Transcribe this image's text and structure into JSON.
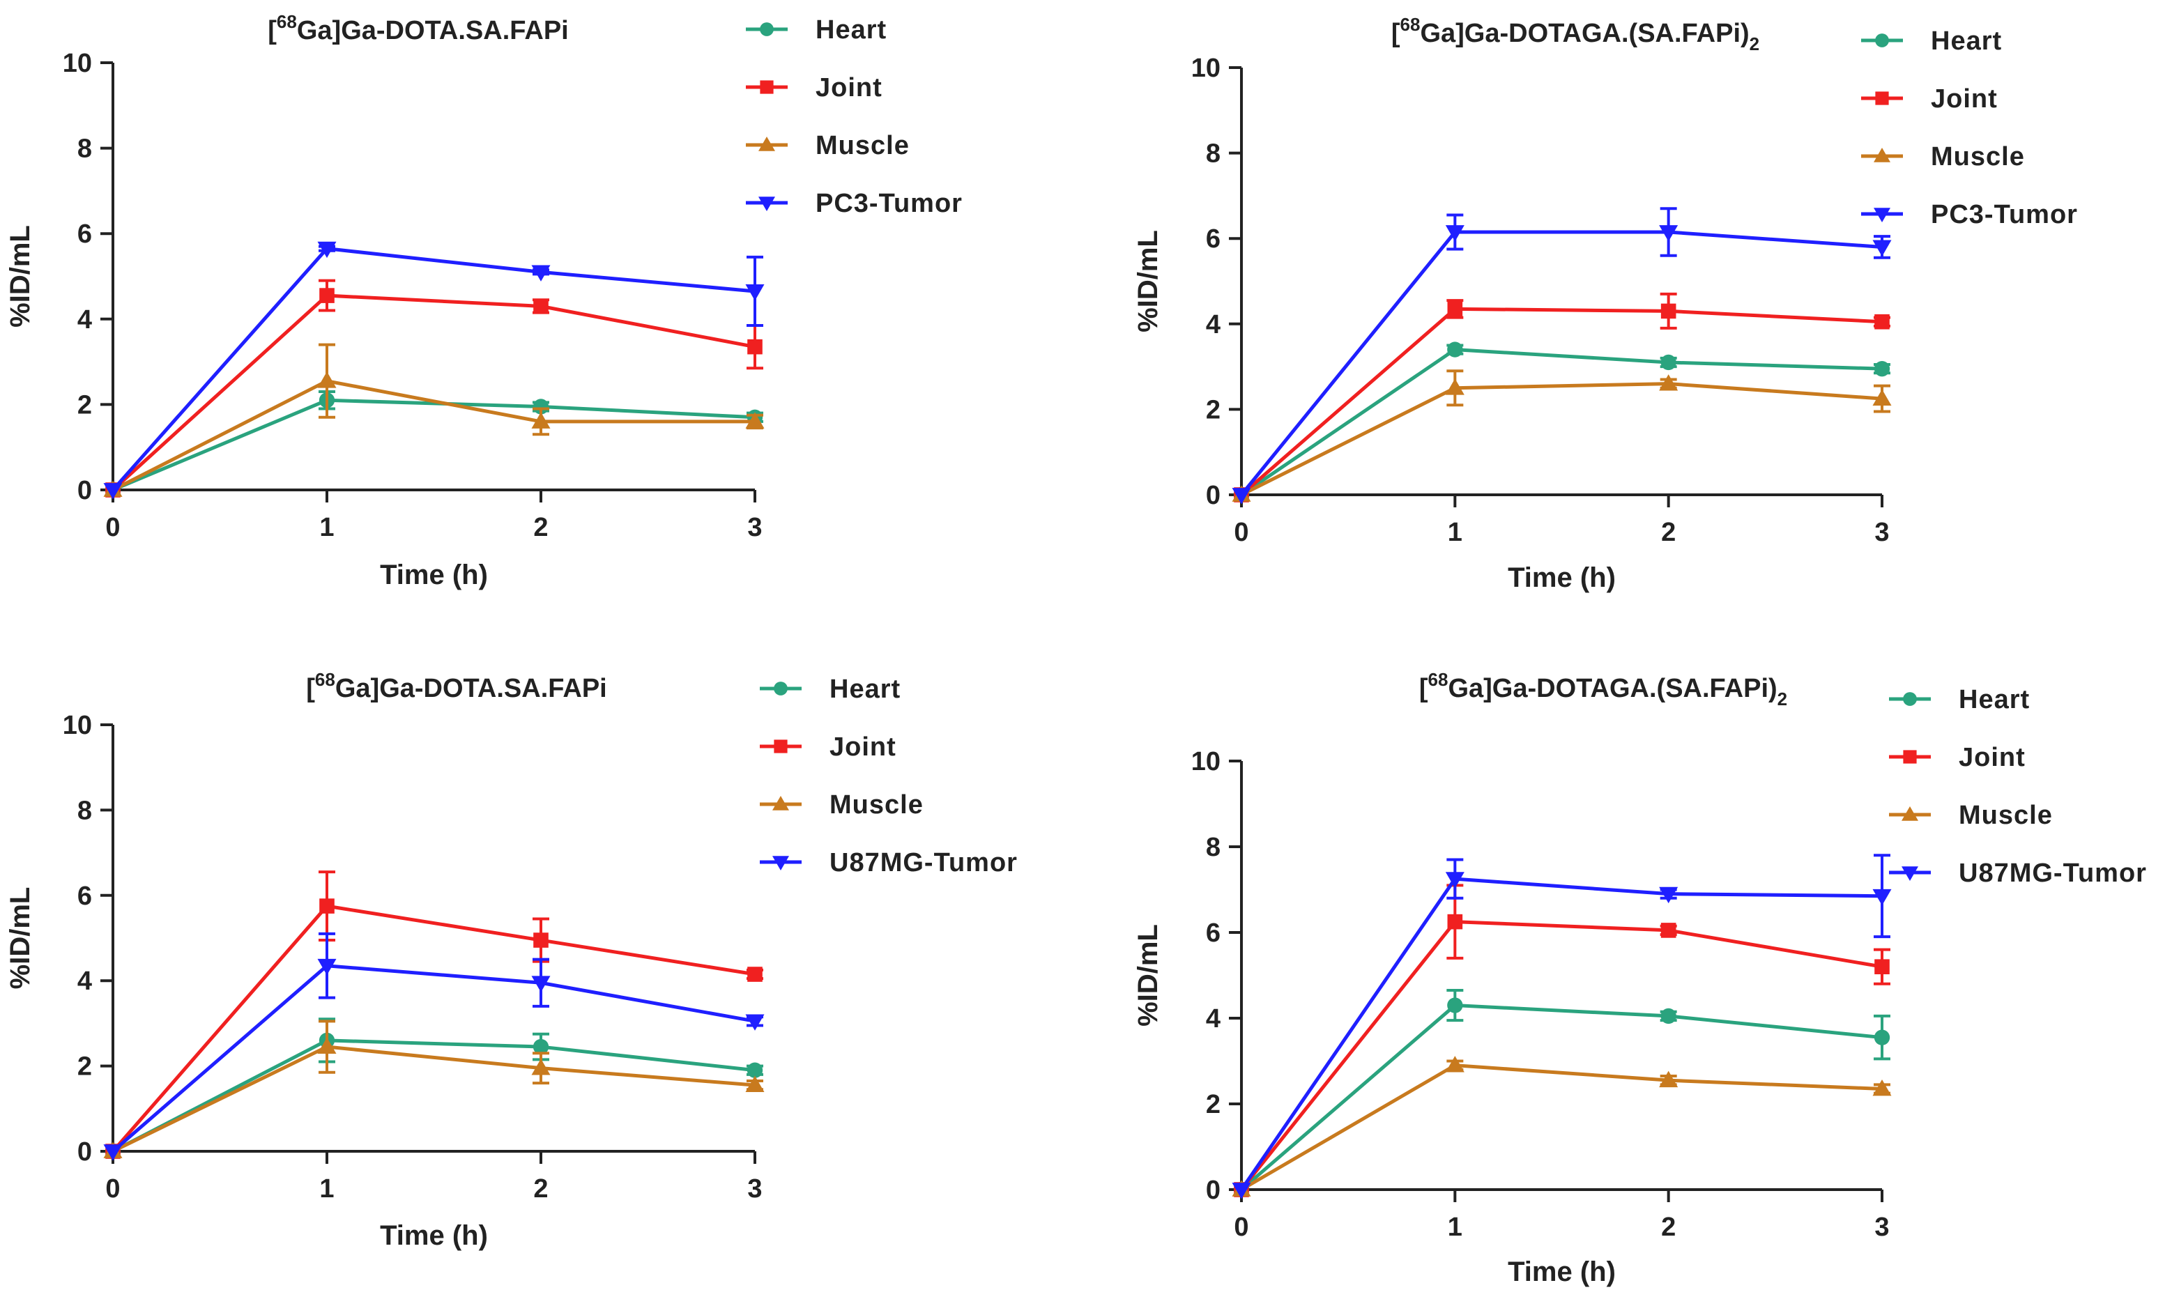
{
  "chart_data": [
    {
      "type": "line",
      "title": {
        "prefix": "[",
        "superscript": "68",
        "main": "Ga]Ga-DOTA.SA.FAPi",
        "subscript": ""
      },
      "xlabel": "Time (h)",
      "ylabel": "%ID/mL",
      "xlim": [
        0,
        3
      ],
      "ylim": [
        0,
        10
      ],
      "xticks": [
        0,
        1,
        2,
        3
      ],
      "yticks": [
        0,
        2,
        4,
        6,
        8,
        10
      ],
      "grid": false,
      "legend_position": "right",
      "x": [
        0,
        1,
        2,
        3
      ],
      "series": [
        {
          "name": "Heart",
          "color": "#2aa37e",
          "marker": "circle",
          "values": [
            0,
            2.1,
            1.95,
            1.7
          ],
          "errors": [
            0,
            0.2,
            0.1,
            0.1
          ]
        },
        {
          "name": "Joint",
          "color": "#f02020",
          "marker": "square",
          "values": [
            0,
            4.55,
            4.3,
            3.35
          ],
          "errors": [
            0,
            0.35,
            0.15,
            0.5
          ]
        },
        {
          "name": "Muscle",
          "color": "#c87a1e",
          "marker": "triangle-up",
          "values": [
            0,
            2.55,
            1.6,
            1.6
          ],
          "errors": [
            0,
            0.85,
            0.3,
            0.15
          ]
        },
        {
          "name": "PC3-Tumor",
          "color": "#1f1fff",
          "marker": "triangle-down",
          "values": [
            0,
            5.65,
            5.1,
            4.65
          ],
          "errors": [
            0,
            0.05,
            0.05,
            0.8
          ]
        }
      ]
    },
    {
      "type": "line",
      "title": {
        "prefix": "[",
        "superscript": "68",
        "main": "Ga]Ga-DOTAGA.(SA.FAPi)",
        "subscript": "2"
      },
      "xlabel": "Time (h)",
      "ylabel": "%ID/mL",
      "xlim": [
        0,
        3
      ],
      "ylim": [
        0,
        10
      ],
      "xticks": [
        0,
        1,
        2,
        3
      ],
      "yticks": [
        0,
        2,
        4,
        6,
        8,
        10
      ],
      "grid": false,
      "legend_position": "right",
      "x": [
        0,
        1,
        2,
        3
      ],
      "series": [
        {
          "name": "Heart",
          "color": "#2aa37e",
          "marker": "circle",
          "values": [
            0,
            3.4,
            3.1,
            2.95
          ],
          "errors": [
            0,
            0.1,
            0.1,
            0.1
          ]
        },
        {
          "name": "Joint",
          "color": "#f02020",
          "marker": "square",
          "values": [
            0,
            4.35,
            4.3,
            4.05
          ],
          "errors": [
            0,
            0.2,
            0.4,
            0.1
          ]
        },
        {
          "name": "Muscle",
          "color": "#c87a1e",
          "marker": "triangle-up",
          "values": [
            0,
            2.5,
            2.6,
            2.25
          ],
          "errors": [
            0,
            0.4,
            0.1,
            0.3
          ]
        },
        {
          "name": "PC3-Tumor",
          "color": "#1f1fff",
          "marker": "triangle-down",
          "values": [
            0,
            6.15,
            6.15,
            5.8
          ],
          "errors": [
            0,
            0.4,
            0.55,
            0.25
          ]
        }
      ]
    },
    {
      "type": "line",
      "title": {
        "prefix": "[",
        "superscript": "68",
        "main": "Ga]Ga-DOTA.SA.FAPi",
        "subscript": ""
      },
      "xlabel": "Time (h)",
      "ylabel": "%ID/mL",
      "xlim": [
        0,
        3
      ],
      "ylim": [
        0,
        10
      ],
      "xticks": [
        0,
        1,
        2,
        3
      ],
      "yticks": [
        0,
        2,
        4,
        6,
        8,
        10
      ],
      "grid": false,
      "legend_position": "right",
      "x": [
        0,
        1,
        2,
        3
      ],
      "series": [
        {
          "name": "Heart",
          "color": "#2aa37e",
          "marker": "circle",
          "values": [
            0,
            2.6,
            2.45,
            1.9
          ],
          "errors": [
            0,
            0.5,
            0.3,
            0.1
          ]
        },
        {
          "name": "Joint",
          "color": "#f02020",
          "marker": "square",
          "values": [
            0,
            5.75,
            4.95,
            4.15
          ],
          "errors": [
            0,
            0.8,
            0.5,
            0.1
          ]
        },
        {
          "name": "Muscle",
          "color": "#c87a1e",
          "marker": "triangle-up",
          "values": [
            0,
            2.45,
            1.95,
            1.55
          ],
          "errors": [
            0,
            0.6,
            0.35,
            0.1
          ]
        },
        {
          "name": "U87MG-Tumor",
          "color": "#1f1fff",
          "marker": "triangle-down",
          "values": [
            0,
            4.35,
            3.95,
            3.05
          ],
          "errors": [
            0,
            0.75,
            0.55,
            0.1
          ]
        }
      ]
    },
    {
      "type": "line",
      "title": {
        "prefix": "[",
        "superscript": "68",
        "main": "Ga]Ga-DOTAGA.(SA.FAPi)",
        "subscript": "2"
      },
      "xlabel": "Time (h)",
      "ylabel": "%ID/mL",
      "xlim": [
        0,
        3
      ],
      "ylim": [
        0,
        10
      ],
      "xticks": [
        0,
        1,
        2,
        3
      ],
      "yticks": [
        0,
        2,
        4,
        6,
        8,
        10
      ],
      "grid": false,
      "legend_position": "right",
      "x": [
        0,
        1,
        2,
        3
      ],
      "series": [
        {
          "name": "Heart",
          "color": "#2aa37e",
          "marker": "circle",
          "values": [
            0,
            4.3,
            4.05,
            3.55
          ],
          "errors": [
            0,
            0.35,
            0.1,
            0.5
          ]
        },
        {
          "name": "Joint",
          "color": "#f02020",
          "marker": "square",
          "values": [
            0,
            6.25,
            6.05,
            5.2
          ],
          "errors": [
            0,
            0.85,
            0.1,
            0.4
          ]
        },
        {
          "name": "Muscle",
          "color": "#c87a1e",
          "marker": "triangle-up",
          "values": [
            0,
            2.9,
            2.55,
            2.35
          ],
          "errors": [
            0,
            0.1,
            0.1,
            0.1
          ]
        },
        {
          "name": "U87MG-Tumor",
          "color": "#1f1fff",
          "marker": "triangle-down",
          "values": [
            0,
            7.25,
            6.9,
            6.85
          ],
          "errors": [
            0,
            0.45,
            0.1,
            0.95
          ]
        }
      ]
    }
  ]
}
